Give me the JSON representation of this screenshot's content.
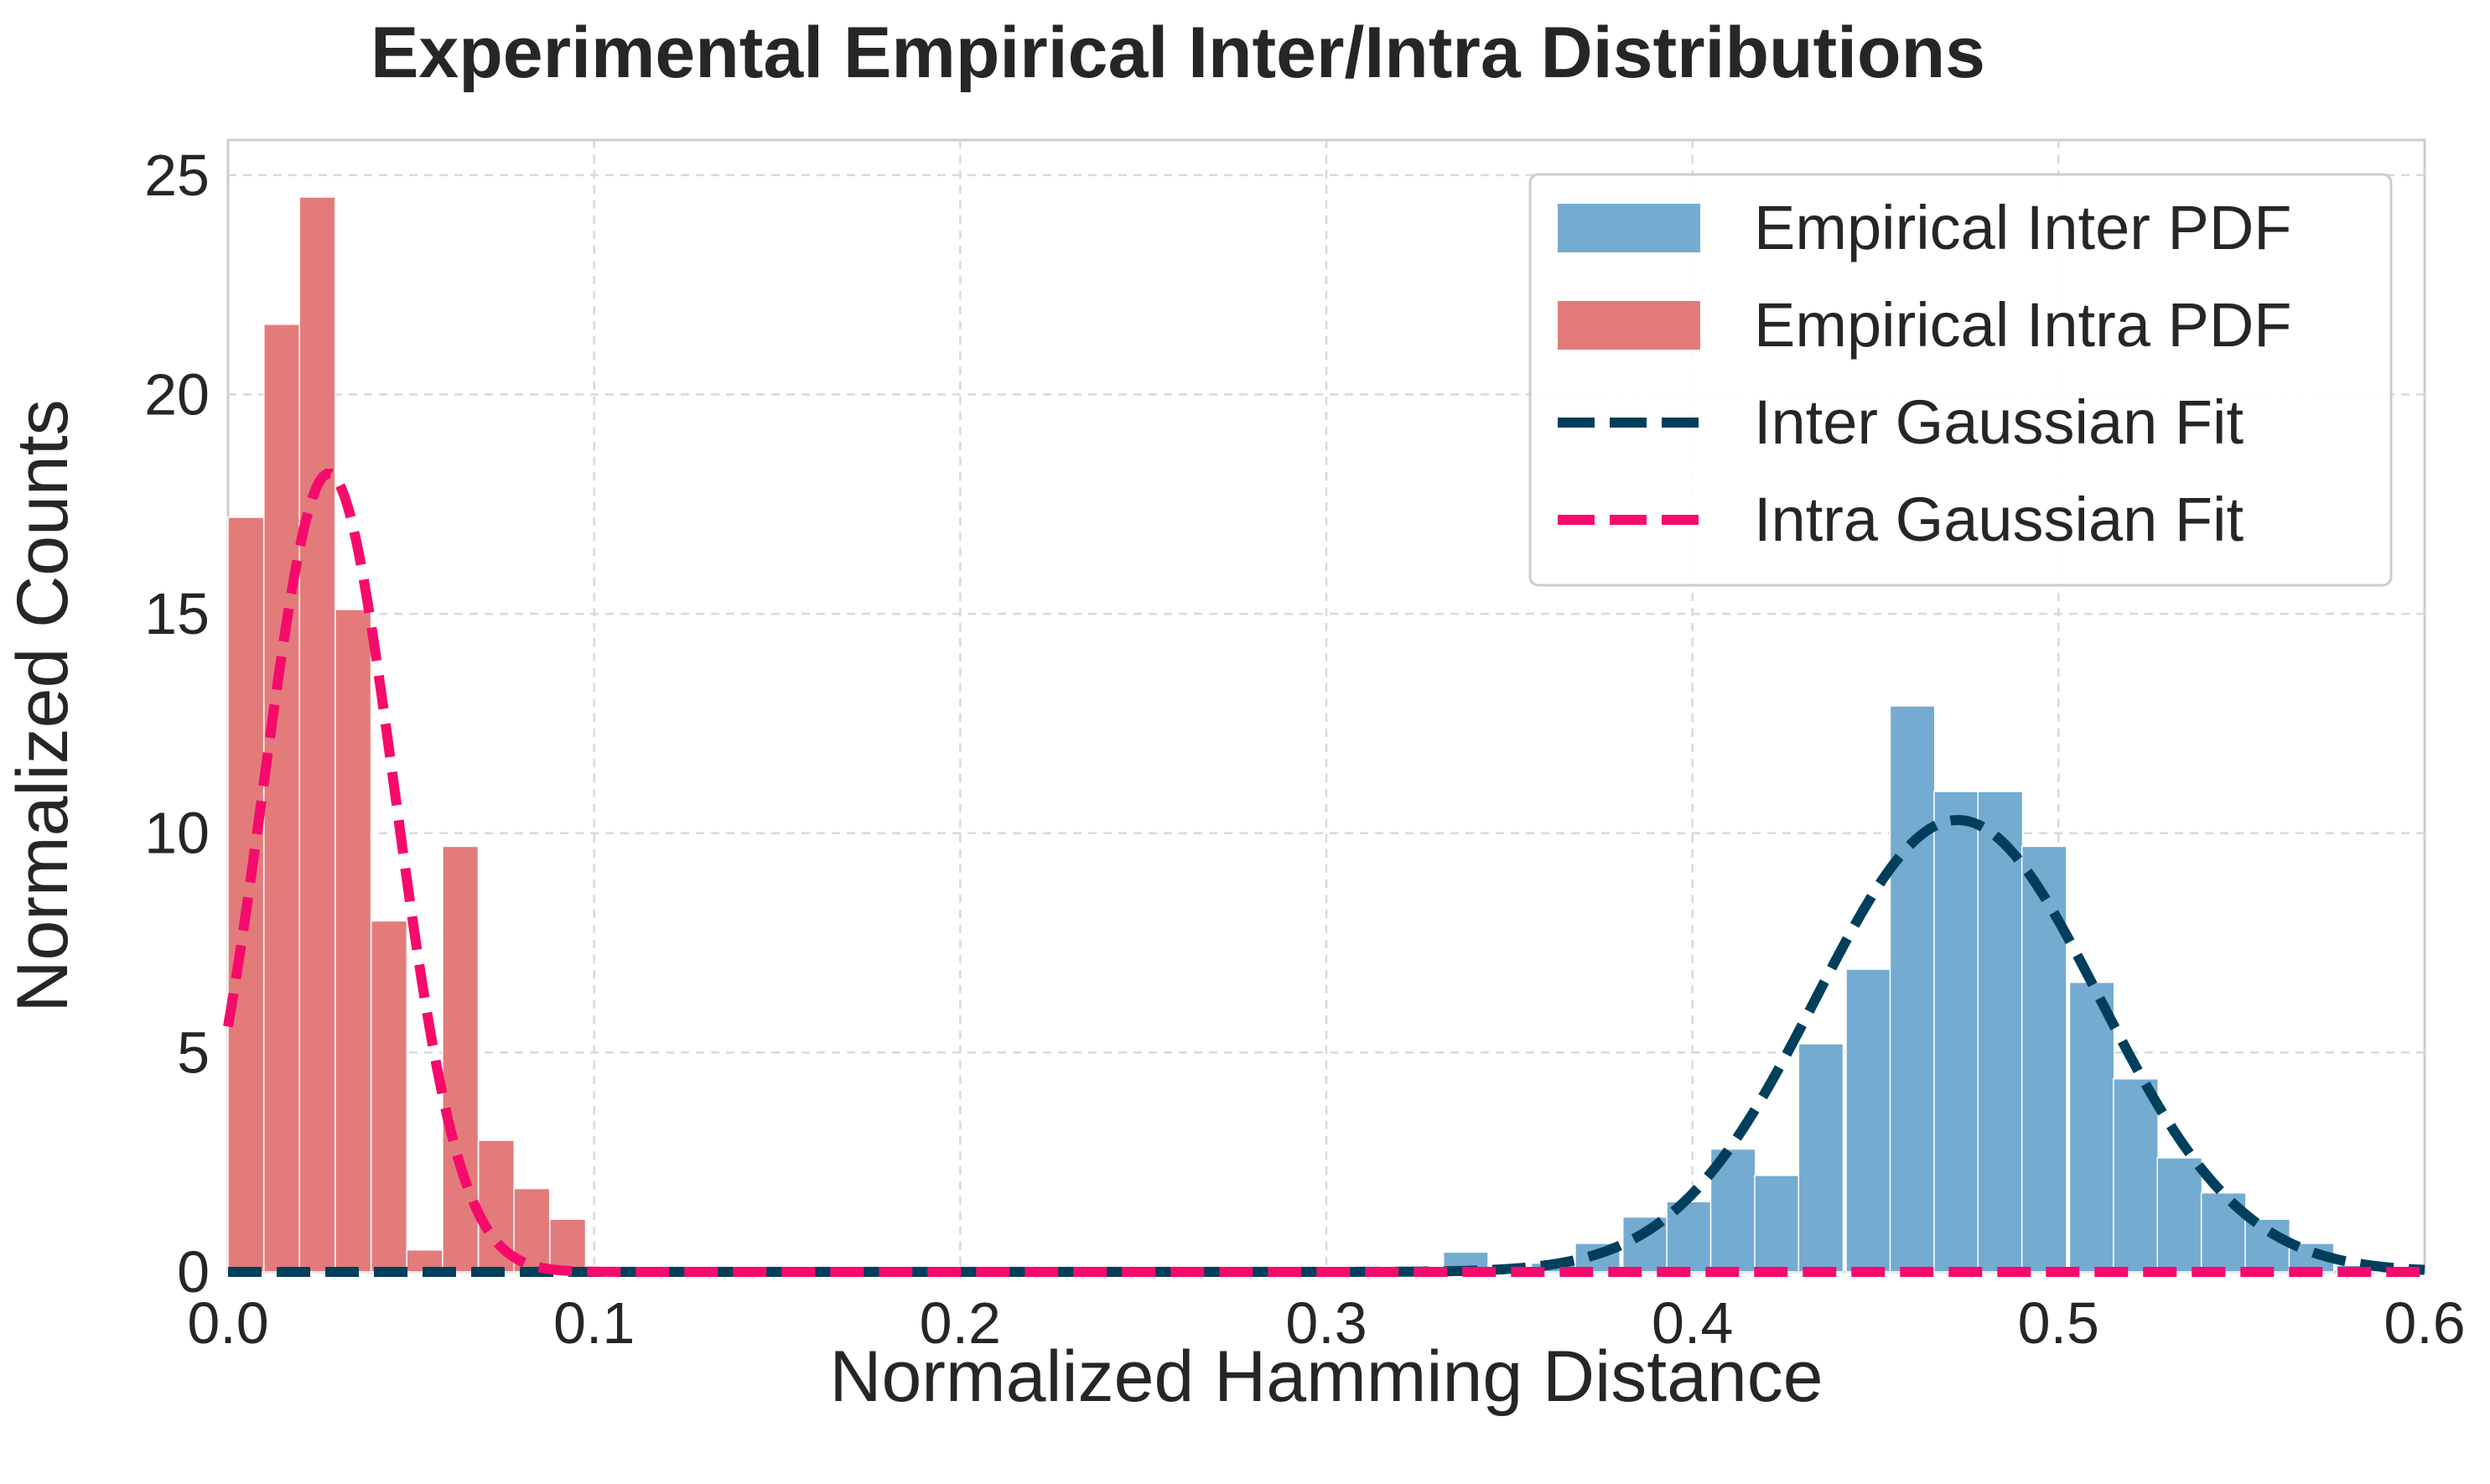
{
  "chart_data": {
    "type": "bar",
    "title": "Experimental Empirical Inter/Intra Distributions",
    "xlabel": "Normalized Hamming Distance",
    "ylabel": "Normalized Counts",
    "xlim": [
      0.0,
      0.6
    ],
    "ylim": [
      0,
      25.8
    ],
    "xticks": [
      0.0,
      0.1,
      0.2,
      0.3,
      0.4,
      0.5,
      0.6
    ],
    "xtick_labels": [
      "0.0",
      "0.1",
      "0.2",
      "0.3",
      "0.4",
      "0.5",
      "0.6"
    ],
    "yticks": [
      0,
      5,
      10,
      15,
      20,
      25
    ],
    "ytick_labels": [
      "0",
      "5",
      "10",
      "15",
      "20",
      "25"
    ],
    "grid": true,
    "legend_position": "top-right",
    "series": [
      {
        "name": "Empirical Intra PDF",
        "kind": "histogram",
        "color": "#e37b7b",
        "bin_width": 0.00976,
        "bins": [
          [
            0.0,
            17.2
          ],
          [
            0.0098,
            21.6
          ],
          [
            0.0195,
            24.5
          ],
          [
            0.0293,
            15.1
          ],
          [
            0.0391,
            8.0
          ],
          [
            0.0488,
            0.5
          ],
          [
            0.0586,
            9.7
          ],
          [
            0.0684,
            3.0
          ],
          [
            0.0781,
            1.9
          ],
          [
            0.0879,
            1.2
          ]
        ]
      },
      {
        "name": "Empirical Inter PDF",
        "kind": "histogram",
        "color": "#74abd1",
        "bin_width": 0.0122,
        "bins": [
          [
            0.332,
            0.45
          ],
          [
            0.344,
            0.0
          ],
          [
            0.356,
            0.2
          ],
          [
            0.368,
            0.65
          ],
          [
            0.381,
            1.25
          ],
          [
            0.393,
            1.6
          ],
          [
            0.405,
            2.8
          ],
          [
            0.417,
            2.2
          ],
          [
            0.429,
            5.2
          ],
          [
            0.442,
            6.9
          ],
          [
            0.454,
            12.9
          ],
          [
            0.466,
            10.95
          ],
          [
            0.478,
            10.95
          ],
          [
            0.49,
            9.7
          ],
          [
            0.503,
            6.6
          ],
          [
            0.515,
            4.4
          ],
          [
            0.527,
            2.6
          ],
          [
            0.539,
            1.8
          ],
          [
            0.551,
            1.2
          ],
          [
            0.563,
            0.65
          ],
          [
            0.576,
            0.15
          ]
        ]
      },
      {
        "name": "Inter Gaussian Fit",
        "kind": "gaussian",
        "color": "#003f5c",
        "mean": 0.4725,
        "std": 0.0387,
        "peak": 10.3
      },
      {
        "name": "Intra Gaussian Fit",
        "kind": "gaussian",
        "color": "#f60a6c",
        "mean": 0.0275,
        "std": 0.0179,
        "peak": 18.2
      }
    ],
    "legend": [
      {
        "label": "Empirical Inter PDF",
        "swatch": "patch",
        "color": "#74abd1"
      },
      {
        "label": "Empirical Intra PDF",
        "swatch": "patch",
        "color": "#e37b7b"
      },
      {
        "label": "Inter Gaussian Fit",
        "swatch": "dashed-line",
        "color": "#003f5c"
      },
      {
        "label": "Intra Gaussian Fit",
        "swatch": "dashed-line",
        "color": "#f60a6c"
      }
    ]
  }
}
